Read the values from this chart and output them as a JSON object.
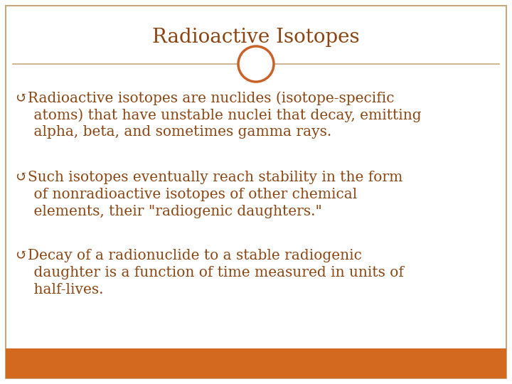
{
  "title": "Radioactive Isotopes",
  "title_color": "#8B4513",
  "title_fontsize": 20,
  "bg_color": "#FFFFFF",
  "border_color": "#C8A882",
  "bottom_bar_color": "#D2691E",
  "text_color": "#8B4513",
  "separator_line_color": "#C8A882",
  "circle_color": "#C8622A",
  "bullet_points": [
    [
      "↺Radioactive isotopes are nuclides (isotope-specific",
      "    atoms) that have unstable nuclei that decay, emitting",
      "    alpha, beta, and sometimes gamma rays."
    ],
    [
      "↺Such isotopes eventually reach stability in the form",
      "    of nonradioactive isotopes of other chemical",
      "    elements, their \"radiogenic daughters.\""
    ],
    [
      "↺Decay of a radionuclide to a stable radiogenic",
      "    daughter is a function of time measured in units of",
      "    half-lives."
    ]
  ],
  "text_fontsize": 14.5
}
